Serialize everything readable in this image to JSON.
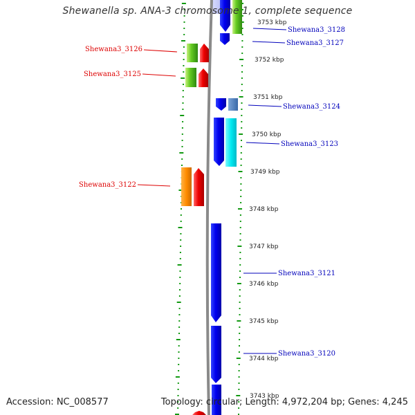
{
  "title": "Shewanella sp. ANA-3 chromosome 1, complete sequence",
  "accession": "Accession: NC_008577",
  "topology": "Topology: circular; Length: 4,972,204 bp; Genes: 4,245",
  "colors": {
    "backbone": "#8a8a8a",
    "forward_strand_tick": "#119911",
    "reverse_strand_tick": "#119911",
    "left_label": "#dd0000",
    "right_label": "#0000bb",
    "kbp_label": "#222222"
  },
  "kbp_ticks": [
    {
      "label": "3753 kbp"
    },
    {
      "label": "3752 kbp"
    },
    {
      "label": "3751 kbp"
    },
    {
      "label": "3750 kbp"
    },
    {
      "label": "3749 kbp"
    },
    {
      "label": "3748 kbp"
    },
    {
      "label": "3747 kbp"
    },
    {
      "label": "3746 kbp"
    },
    {
      "label": "3745 kbp"
    },
    {
      "label": "3744 kbp"
    },
    {
      "label": "3743 kbp"
    }
  ],
  "gene_labels_left": [
    {
      "name": "Shewana3_3126"
    },
    {
      "name": "Shewana3_3125"
    },
    {
      "name": "Shewana3_3122"
    }
  ],
  "gene_labels_right": [
    {
      "name": "Shewana3_3128"
    },
    {
      "name": "Shewana3_3127"
    },
    {
      "name": "Shewana3_3124"
    },
    {
      "name": "Shewana3_3123"
    },
    {
      "name": "Shewana3_3121"
    },
    {
      "name": "Shewana3_3120"
    }
  ]
}
